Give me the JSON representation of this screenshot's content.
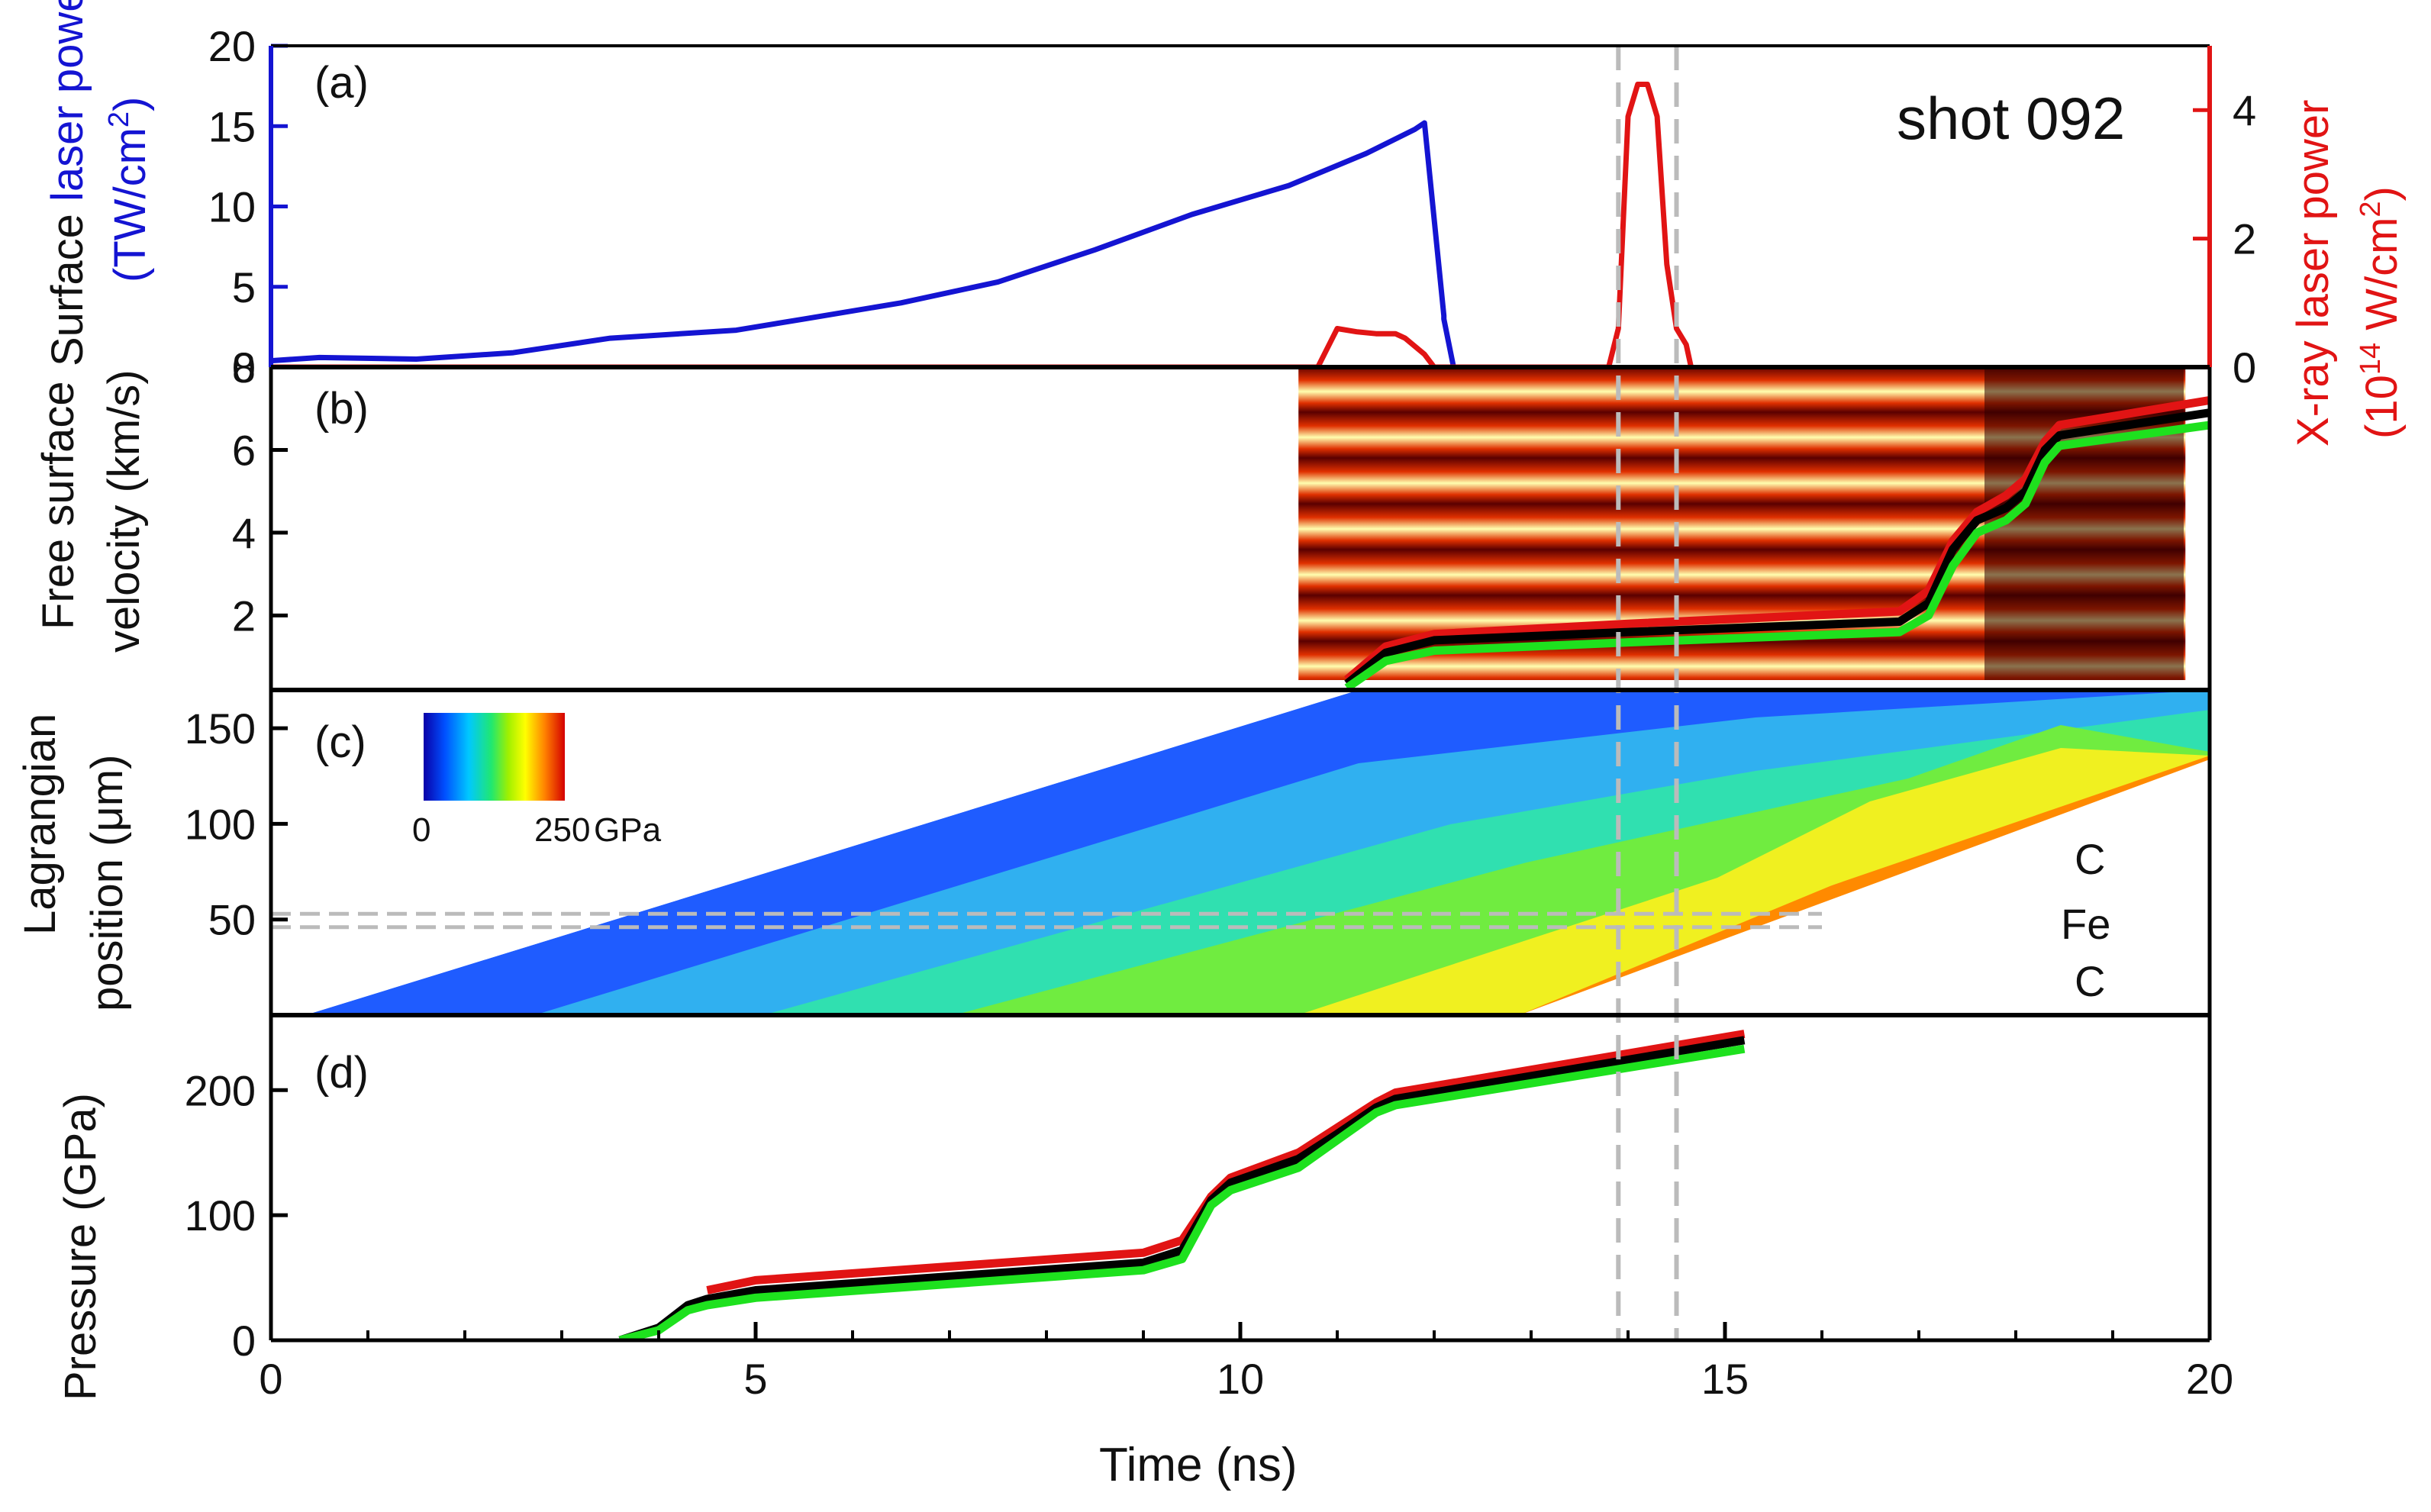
{
  "figure": {
    "shot_label": "shot 092",
    "x_axis_title": "Time (ns)",
    "x_ticks": [
      "0",
      "5",
      "10",
      "15",
      "20"
    ]
  },
  "chart_data": [
    {
      "panel": "a",
      "panel_label": "(a)",
      "type": "line",
      "xlim": [
        0,
        20
      ],
      "ylim": [
        0,
        20
      ],
      "y2lim": [
        0,
        5
      ],
      "ylabel_prefix": "Surface ",
      "ylabel_colored": "laser power",
      "ylabel_unit": "(TW/cm",
      "ylabel_unit_sup": "2",
      "ylabel_unit_end": ")",
      "y2label": "X-ray laser power",
      "y2label_unit": "(10",
      "y2label_unit_sup": "14",
      "y2label_unit_end": " W/cm",
      "y2label_unit_sup2": "2",
      "y2label_unit_close": ")",
      "yticks": [
        "0",
        "5",
        "10",
        "15",
        "20"
      ],
      "y2ticks": [
        "0",
        "2",
        "4"
      ],
      "series": [
        {
          "name": "laser power",
          "color": "#1414d2",
          "axis": "left",
          "x": [
            0,
            0.5,
            1.5,
            2.5,
            3.5,
            4.8,
            5.5,
            6.5,
            7.5,
            8.5,
            9.5,
            10.5,
            11.3,
            11.8,
            11.9,
            12.1,
            12.1,
            12.2
          ],
          "y": [
            0.4,
            0.6,
            0.5,
            0.9,
            1.8,
            2.3,
            3.0,
            4.0,
            5.3,
            7.3,
            9.5,
            11.3,
            13.3,
            14.8,
            15.2,
            3.2,
            3.0,
            0
          ]
        },
        {
          "name": "X-ray laser power",
          "color": "#e11414",
          "axis": "right",
          "x": [
            0,
            10.8,
            10.9,
            11.0,
            11.2,
            11.4,
            11.6,
            11.7,
            11.9,
            12.0,
            13.8,
            13.9,
            14.0,
            14.1,
            14.2,
            14.3,
            14.4,
            14.5,
            14.6,
            14.65
          ],
          "y": [
            0,
            0,
            0.3,
            0.6,
            0.55,
            0.52,
            0.52,
            0.45,
            0.2,
            0,
            0,
            0.6,
            3.9,
            4.4,
            4.4,
            3.9,
            1.6,
            0.6,
            0.35,
            0
          ]
        }
      ]
    },
    {
      "panel": "b",
      "panel_label": "(b)",
      "type": "line",
      "xlim": [
        0,
        20
      ],
      "ylim": [
        0.2,
        8
      ],
      "ylabel_line1": "Free surface",
      "ylabel_line2": "velocity (km/s)",
      "yticks": [
        "2",
        "4",
        "6",
        "8"
      ],
      "image_xlim": [
        10.6,
        19.75
      ],
      "series": [
        {
          "name": "red",
          "color": "#e11414",
          "x": [
            11.1,
            11.5,
            12.0,
            14.0,
            16.8,
            17.1,
            17.35,
            17.6,
            17.9,
            18.1,
            18.3,
            18.45,
            20.0
          ],
          "y": [
            0.45,
            1.25,
            1.55,
            1.8,
            2.1,
            2.6,
            3.8,
            4.5,
            4.9,
            5.3,
            6.2,
            6.6,
            7.2
          ]
        },
        {
          "name": "black",
          "color": "#000000",
          "x": [
            11.1,
            11.5,
            12.0,
            14.0,
            16.8,
            17.1,
            17.35,
            17.6,
            17.9,
            18.1,
            18.3,
            18.45,
            20.0
          ],
          "y": [
            0.35,
            1.1,
            1.4,
            1.6,
            1.85,
            2.3,
            3.6,
            4.3,
            4.6,
            5.0,
            6.0,
            6.35,
            6.9
          ]
        },
        {
          "name": "green",
          "color": "#1ee11e",
          "x": [
            11.1,
            11.5,
            12.0,
            14.0,
            16.8,
            17.1,
            17.35,
            17.6,
            17.9,
            18.1,
            18.3,
            18.45,
            20.0
          ],
          "y": [
            0.25,
            0.9,
            1.15,
            1.35,
            1.6,
            2.0,
            3.2,
            4.0,
            4.3,
            4.7,
            5.7,
            6.1,
            6.6
          ]
        }
      ]
    },
    {
      "panel": "c",
      "panel_label": "(c)",
      "type": "heatmap",
      "xlim": [
        0,
        20
      ],
      "ylim": [
        0,
        170
      ],
      "ylabel_line1": "Lagrangian",
      "ylabel_line2": "position (μm)",
      "yticks": [
        "50",
        "100",
        "150"
      ],
      "colorbar_min": "0",
      "colorbar_max": "250",
      "colorbar_unit": "GPa",
      "layer_labels": [
        "C",
        "Fe",
        "C"
      ],
      "fe_layer_um": [
        46,
        53
      ]
    },
    {
      "panel": "d",
      "panel_label": "(d)",
      "type": "line",
      "xlim": [
        0,
        20
      ],
      "ylim": [
        0,
        260
      ],
      "ylabel": "Pressure (GPa)",
      "yticks": [
        "0",
        "100",
        "200"
      ],
      "series": [
        {
          "name": "red",
          "color": "#e11414",
          "x": [
            4.5,
            5.0,
            9.0,
            9.4,
            9.7,
            9.9,
            10.6,
            11.0,
            11.4,
            11.6,
            15.2
          ],
          "y": [
            40,
            48,
            70,
            80,
            115,
            130,
            150,
            170,
            190,
            198,
            245
          ]
        },
        {
          "name": "black",
          "color": "#000000",
          "x": [
            3.6,
            4.0,
            4.3,
            4.5,
            5.0,
            9.0,
            9.4,
            9.7,
            9.9,
            10.6,
            11.0,
            11.4,
            11.6,
            15.2
          ],
          "y": [
            0,
            10,
            28,
            33,
            40,
            62,
            72,
            112,
            126,
            145,
            165,
            186,
            193,
            240
          ]
        },
        {
          "name": "green",
          "color": "#1ee11e",
          "x": [
            3.6,
            4.0,
            4.3,
            4.5,
            5.0,
            9.0,
            9.4,
            9.7,
            9.9,
            10.6,
            11.0,
            11.4,
            11.6,
            15.2
          ],
          "y": [
            0,
            8,
            24,
            28,
            34,
            56,
            65,
            108,
            120,
            138,
            160,
            182,
            188,
            233
          ]
        }
      ]
    }
  ],
  "markers": {
    "vertical_dashed_lines_ns": [
      13.9,
      14.5
    ]
  }
}
